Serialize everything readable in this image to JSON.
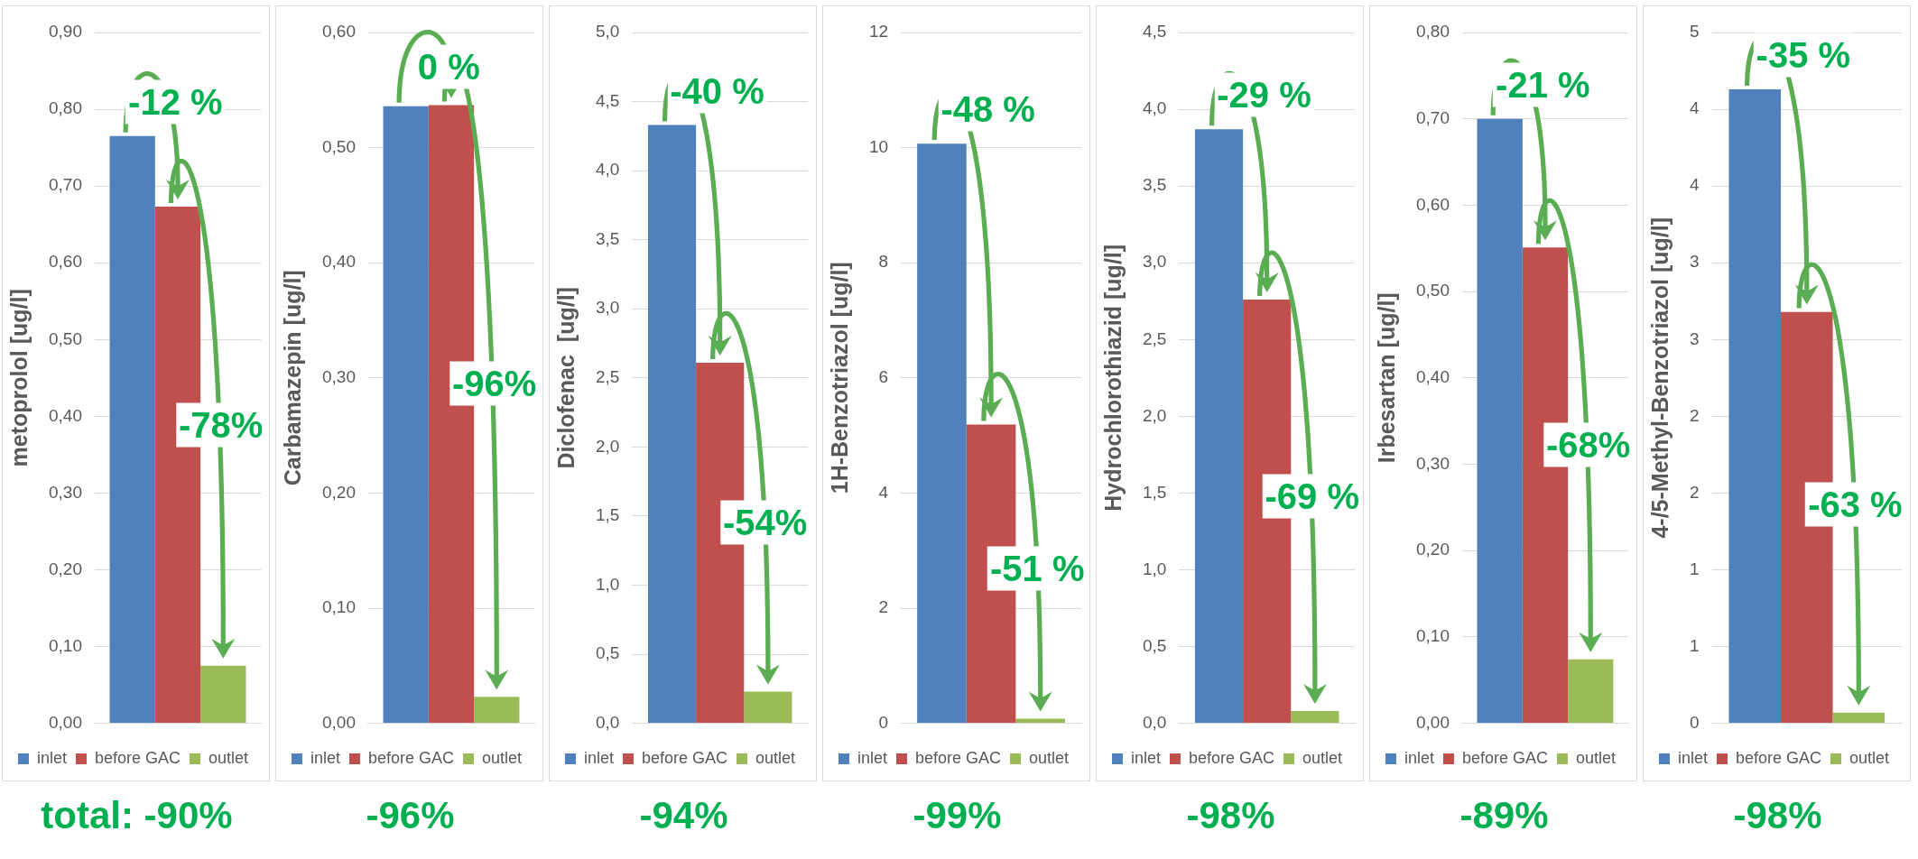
{
  "chart_data": [
    {
      "type": "bar",
      "categories": [
        null
      ],
      "ylabel": "metoprolol [ug/l]",
      "ylim": [
        0,
        0.9
      ],
      "yticks": [
        {
          "value": 0,
          "label": "0,00"
        },
        {
          "value": 0.1,
          "label": "0,10"
        },
        {
          "value": 0.2,
          "label": "0,20"
        },
        {
          "value": 0.3,
          "label": "0,30"
        },
        {
          "value": 0.4,
          "label": "0,40"
        },
        {
          "value": 0.5,
          "label": "0,50"
        },
        {
          "value": 0.6,
          "label": "0,60"
        },
        {
          "value": 0.7,
          "label": "0,70"
        },
        {
          "value": 0.8,
          "label": "0,80"
        },
        {
          "value": 0.9,
          "label": "0,90"
        }
      ],
      "grid": "y",
      "legend": "bottom",
      "annotations": [
        "-12 %",
        "-78%",
        "total: -90%"
      ],
      "series": [
        {
          "name": "inlet",
          "color": "#4f81bd",
          "values": [
            0.765
          ]
        },
        {
          "name": "before GAC",
          "color": "#c0504d",
          "values": [
            0.673
          ]
        },
        {
          "name": "outlet",
          "color": "#9bbb59",
          "values": [
            0.075
          ]
        }
      ]
    },
    {
      "type": "bar",
      "categories": [
        null
      ],
      "ylabel": "Carbamazepin [ug/l]",
      "ylim": [
        0,
        0.6
      ],
      "yticks": [
        {
          "value": 0,
          "label": "0,00"
        },
        {
          "value": 0.1,
          "label": "0,10"
        },
        {
          "value": 0.2,
          "label": "0,20"
        },
        {
          "value": 0.3,
          "label": "0,30"
        },
        {
          "value": 0.4,
          "label": "0,40"
        },
        {
          "value": 0.5,
          "label": "0,50"
        },
        {
          "value": 0.6,
          "label": "0,60"
        }
      ],
      "grid": "y",
      "legend": "bottom",
      "annotations": [
        "0 %",
        "-96%",
        "-96%"
      ],
      "series": [
        {
          "name": "inlet",
          "color": "#4f81bd",
          "values": [
            0.536
          ]
        },
        {
          "name": "before GAC",
          "color": "#c0504d",
          "values": [
            0.537
          ]
        },
        {
          "name": "outlet",
          "color": "#9bbb59",
          "values": [
            0.023
          ]
        }
      ]
    },
    {
      "type": "bar",
      "categories": [
        null
      ],
      "ylabel": "Diclofenac  [ug/l]",
      "ylim": [
        0,
        5
      ],
      "yticks": [
        {
          "value": 0,
          "label": "0,0"
        },
        {
          "value": 0.5,
          "label": "0,5"
        },
        {
          "value": 1,
          "label": "1,0"
        },
        {
          "value": 1.5,
          "label": "1,5"
        },
        {
          "value": 2,
          "label": "2,0"
        },
        {
          "value": 2.5,
          "label": "2,5"
        },
        {
          "value": 3,
          "label": "3,0"
        },
        {
          "value": 3.5,
          "label": "3,5"
        },
        {
          "value": 4,
          "label": "4,0"
        },
        {
          "value": 4.5,
          "label": "4,5"
        },
        {
          "value": 5,
          "label": "5,0"
        }
      ],
      "grid": "y",
      "legend": "bottom",
      "annotations": [
        "-40 %",
        "-54%",
        "-94%"
      ],
      "series": [
        {
          "name": "inlet",
          "color": "#4f81bd",
          "values": [
            4.33
          ]
        },
        {
          "name": "before GAC",
          "color": "#c0504d",
          "values": [
            2.61
          ]
        },
        {
          "name": "outlet",
          "color": "#9bbb59",
          "values": [
            0.23
          ]
        }
      ]
    },
    {
      "type": "bar",
      "categories": [
        null
      ],
      "ylabel": "1H-Benzotriazol [ug/l]",
      "ylim": [
        0,
        12
      ],
      "yticks": [
        0,
        2,
        4,
        6,
        8,
        10,
        12
      ],
      "grid": "y",
      "legend": "bottom",
      "annotations": [
        "-48 %",
        "-51 %",
        "-99%"
      ],
      "series": [
        {
          "name": "inlet",
          "color": "#4f81bd",
          "values": [
            10.07
          ]
        },
        {
          "name": "before GAC",
          "color": "#c0504d",
          "values": [
            5.19
          ]
        },
        {
          "name": "outlet",
          "color": "#9bbb59",
          "values": [
            0.08
          ]
        }
      ]
    },
    {
      "type": "bar",
      "categories": [
        null
      ],
      "ylabel": "Hydrochlorothiazid [ug/l]",
      "ylim": [
        0,
        4.5
      ],
      "yticks": [
        {
          "value": 0,
          "label": "0,0"
        },
        {
          "value": 0.5,
          "label": "0,5"
        },
        {
          "value": 1,
          "label": "1,0"
        },
        {
          "value": 1.5,
          "label": "1,5"
        },
        {
          "value": 2,
          "label": "2,0"
        },
        {
          "value": 2.5,
          "label": "2,5"
        },
        {
          "value": 3,
          "label": "3,0"
        },
        {
          "value": 3.5,
          "label": "3,5"
        },
        {
          "value": 4,
          "label": "4,0"
        },
        {
          "value": 4.5,
          "label": "4,5"
        }
      ],
      "grid": "y",
      "legend": "bottom",
      "annotations": [
        "-29 %",
        "-69 %",
        "-98%"
      ],
      "series": [
        {
          "name": "inlet",
          "color": "#4f81bd",
          "values": [
            3.87
          ]
        },
        {
          "name": "before GAC",
          "color": "#c0504d",
          "values": [
            2.76
          ]
        },
        {
          "name": "outlet",
          "color": "#9bbb59",
          "values": [
            0.08
          ]
        }
      ]
    },
    {
      "type": "bar",
      "categories": [
        null
      ],
      "ylabel": "Irbesartan [ug/l]",
      "ylim": [
        0,
        0.8
      ],
      "yticks": [
        {
          "value": 0,
          "label": "0,00"
        },
        {
          "value": 0.1,
          "label": "0,10"
        },
        {
          "value": 0.2,
          "label": "0,20"
        },
        {
          "value": 0.3,
          "label": "0,30"
        },
        {
          "value": 0.4,
          "label": "0,40"
        },
        {
          "value": 0.5,
          "label": "0,50"
        },
        {
          "value": 0.6,
          "label": "0,60"
        },
        {
          "value": 0.7,
          "label": "0,70"
        },
        {
          "value": 0.8,
          "label": "0,80"
        }
      ],
      "grid": "y",
      "legend": "bottom",
      "annotations": [
        "-21 %",
        "-68%",
        "-89%"
      ],
      "series": [
        {
          "name": "inlet",
          "color": "#4f81bd",
          "values": [
            0.7
          ]
        },
        {
          "name": "before GAC",
          "color": "#c0504d",
          "values": [
            0.551
          ]
        },
        {
          "name": "outlet",
          "color": "#9bbb59",
          "values": [
            0.074
          ]
        }
      ]
    },
    {
      "type": "bar",
      "categories": [
        null
      ],
      "ylabel": "4-/5-Methyl-Benzotriazol [ug/l]",
      "ylim": [
        0,
        4.5
      ],
      "yticks": [
        0,
        {
          "value": 0.5,
          "label": "1"
        },
        1,
        {
          "value": 1.5,
          "label": "2"
        },
        2,
        {
          "value": 2.5,
          "label": "3"
        },
        3,
        {
          "value": 3.5,
          "label": "4"
        },
        4,
        {
          "value": 4.5,
          "label": "5"
        }
      ],
      "grid": "y",
      "legend": "bottom",
      "annotations": [
        "-35 %",
        "-63 %",
        "-98%"
      ],
      "series": [
        {
          "name": "inlet",
          "color": "#4f81bd",
          "values": [
            4.13
          ]
        },
        {
          "name": "before GAC",
          "color": "#c0504d",
          "values": [
            2.68
          ]
        },
        {
          "name": "outlet",
          "color": "#9bbb59",
          "values": [
            0.07
          ]
        }
      ]
    }
  ]
}
